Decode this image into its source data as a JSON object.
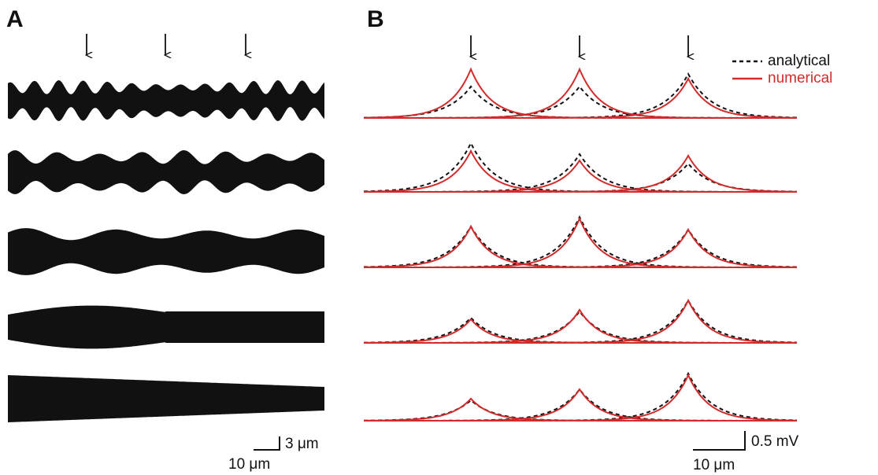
{
  "panels": {
    "a": {
      "label": "A",
      "scale_bar": {
        "vertical": "3 μm",
        "horizontal": "10 μm"
      }
    },
    "b": {
      "label": "B",
      "legend": [
        "analytical",
        "numerical"
      ],
      "scale_bar": {
        "vertical": "0.5 mV",
        "horizontal": "10 μm"
      }
    }
  }
}
